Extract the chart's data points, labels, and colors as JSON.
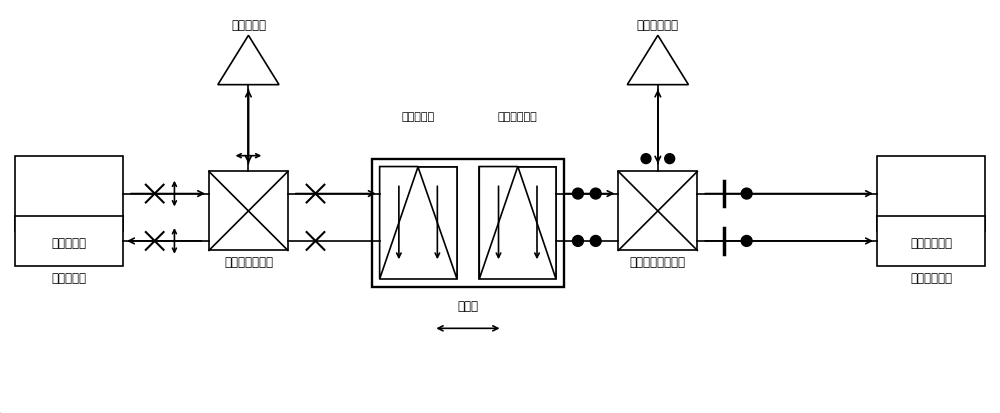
{
  "bg_color": "#ffffff",
  "line_color": "#000000",
  "fig_width": 10.0,
  "fig_height": 4.14,
  "labels": {
    "std_laser": "标准激光器",
    "std_receiver": "标准接收器",
    "std_ref_mirror": "标准参考镜",
    "std_meas_mirror": "标准测量镜",
    "std_pbs": "标准偏振分光镜",
    "cal_laser": "被校准激光器",
    "cal_receiver": "被校准接收器",
    "cal_ref_mirror": "被校准参考镜",
    "cal_meas_mirror": "被校准测量镜",
    "cal_pbs": "被校准偏振分光镜",
    "motion_stage": "运动台"
  }
}
